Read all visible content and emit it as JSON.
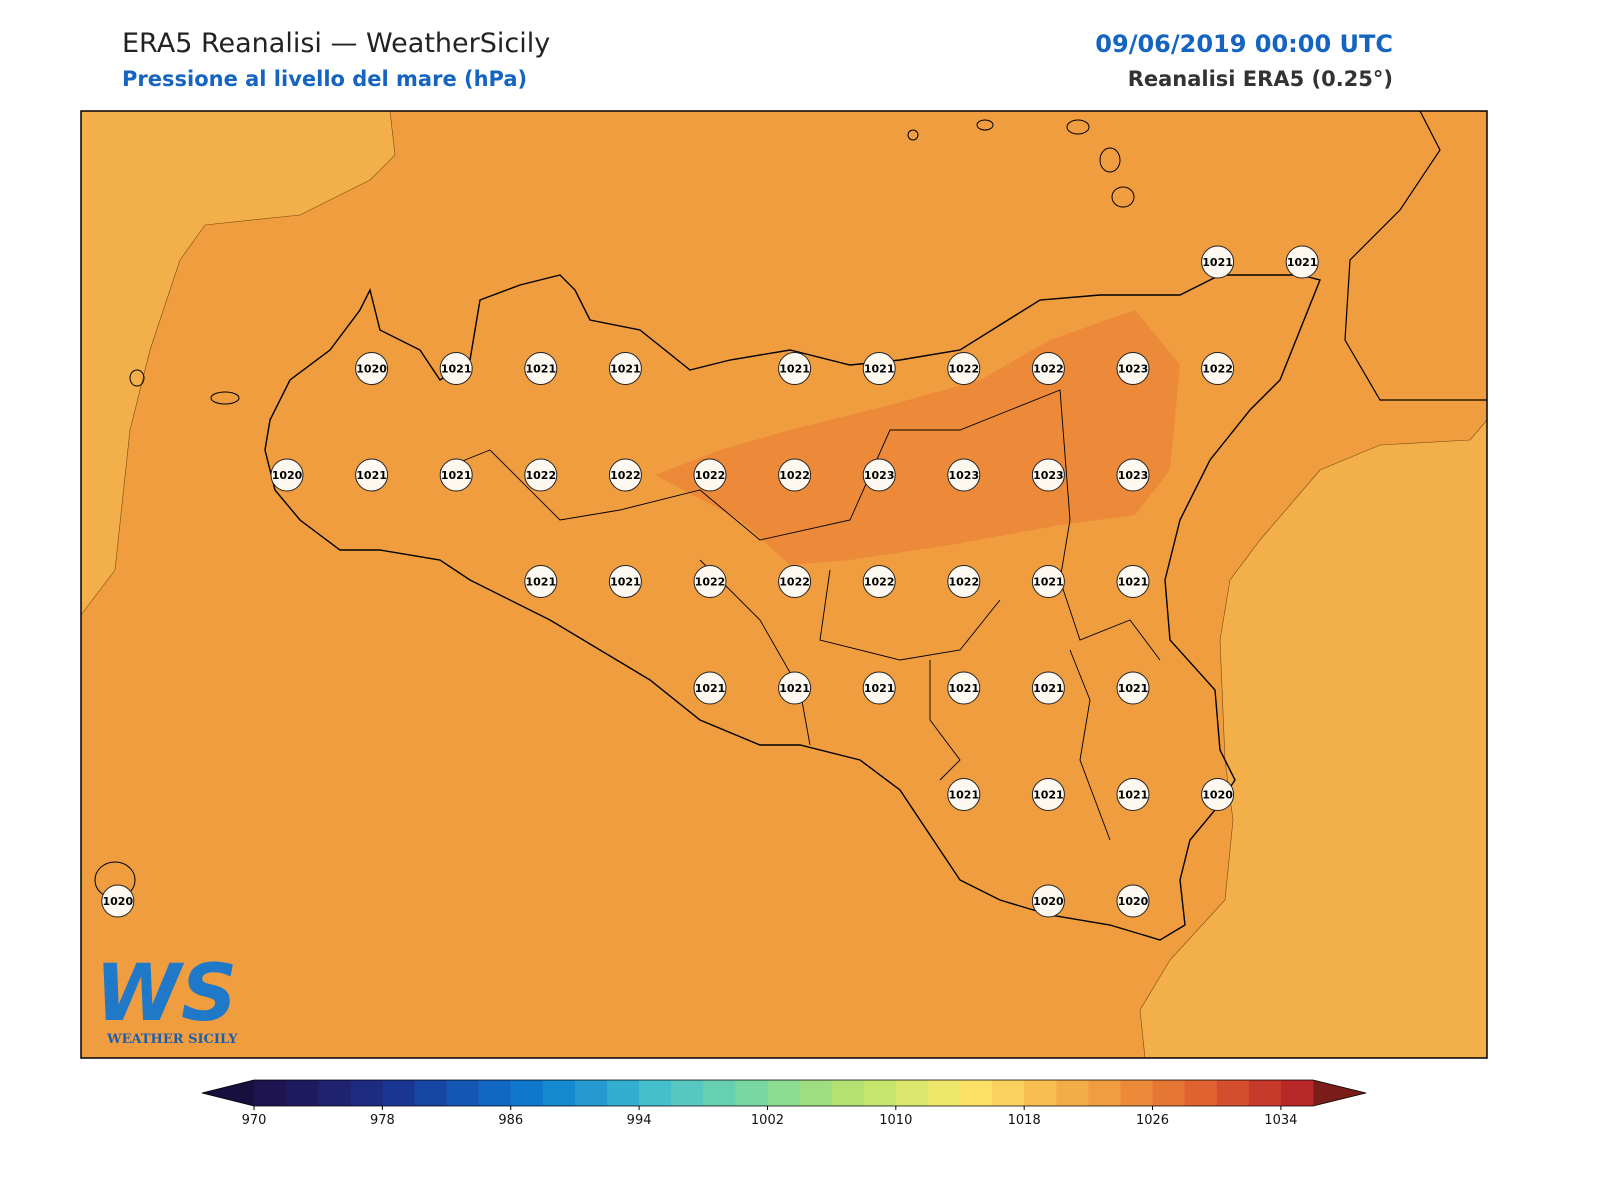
{
  "header": {
    "title": "ERA5 Reanalisi — WeatherSicily",
    "subtitle": "Pressione al livello del mare (hPa)",
    "date": "09/06/2019 00:00 UTC",
    "source": "Reanalisi ERA5 (0.25°)"
  },
  "map": {
    "type": "contour-map",
    "stations": [
      [
        null,
        null,
        null,
        null,
        null,
        null,
        null,
        null,
        null,
        null,
        null,
        null,
        null,
        1021,
        1021
      ],
      [
        null,
        null,
        null,
        1020,
        1021,
        1021,
        1021,
        null,
        1021,
        1021,
        1022,
        1022,
        1023,
        1022,
        null
      ],
      [
        null,
        null,
        1020,
        1021,
        1021,
        1022,
        1022,
        1022,
        1022,
        1023,
        1023,
        1023,
        1023,
        null,
        null
      ],
      [
        null,
        null,
        null,
        null,
        null,
        1021,
        1021,
        1022,
        1022,
        1022,
        1022,
        1021,
        1021,
        null,
        null
      ],
      [
        null,
        null,
        null,
        null,
        null,
        null,
        null,
        1021,
        1021,
        1021,
        1021,
        1021,
        1021,
        null,
        null
      ],
      [
        null,
        null,
        null,
        null,
        null,
        null,
        null,
        null,
        null,
        null,
        1021,
        1021,
        1021,
        1020,
        null
      ],
      [
        1020,
        null,
        null,
        null,
        null,
        null,
        null,
        null,
        null,
        null,
        null,
        1020,
        1020,
        null,
        null
      ]
    ]
  },
  "colorbar": {
    "lim": [
      970,
      1036
    ],
    "ticks": [
      970,
      978,
      986,
      994,
      1002,
      1010,
      1018,
      1026,
      1034
    ],
    "under": "#170f3e",
    "over": "#7a1d1a",
    "colors": [
      "#1e1450",
      "#1f1a5e",
      "#1f226e",
      "#1d2b80",
      "#1a3692",
      "#1745a3",
      "#1456b3",
      "#1167c2",
      "#0f78cc",
      "#168ad0",
      "#2599d0",
      "#34aed0",
      "#45bfcb",
      "#56c8bf",
      "#66d0b0",
      "#78d6a0",
      "#8bdb90",
      "#9fde80",
      "#b3e272",
      "#c6e56c",
      "#d9e86c",
      "#ece66a",
      "#fbdf66",
      "#fad05e",
      "#f7be52",
      "#f3ad48",
      "#f09c40",
      "#ec8a39",
      "#e67634",
      "#df6230",
      "#d44e2d",
      "#c73a2b",
      "#b82828"
    ]
  },
  "logo": {
    "mark": "WS",
    "name": "WEATHER SICILY"
  }
}
